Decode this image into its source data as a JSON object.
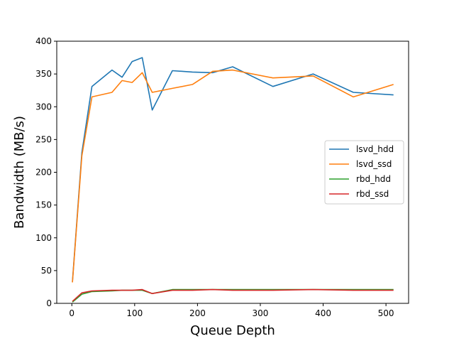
{
  "chart_data": {
    "type": "line",
    "xlabel": "Queue Depth",
    "ylabel": "Bandwidth (MB/s)",
    "xlim": [
      -24,
      536
    ],
    "ylim": [
      0,
      400
    ],
    "xticks": [
      0,
      100,
      200,
      300,
      400,
      500
    ],
    "yticks": [
      0,
      50,
      100,
      150,
      200,
      250,
      300,
      350,
      400
    ],
    "grid": false,
    "legend_position": "center-right",
    "series": [
      {
        "name": "lsvd_hdd",
        "color": "#1f77b4",
        "x": [
          1,
          16,
          32,
          64,
          80,
          96,
          112,
          128,
          160,
          192,
          224,
          256,
          320,
          384,
          448,
          512
        ],
        "y": [
          33,
          230,
          331,
          356,
          345,
          369,
          375,
          295,
          355,
          353,
          352,
          361,
          331,
          350,
          322,
          318
        ]
      },
      {
        "name": "lsvd_ssd",
        "color": "#ff7f0e",
        "x": [
          1,
          16,
          32,
          64,
          80,
          96,
          112,
          128,
          160,
          192,
          224,
          256,
          320,
          384,
          448,
          512
        ],
        "y": [
          32,
          225,
          315,
          322,
          340,
          337,
          352,
          322,
          328,
          334,
          354,
          356,
          344,
          347,
          315,
          334
        ]
      },
      {
        "name": "rbd_hdd",
        "color": "#2ca02c",
        "x": [
          1,
          16,
          32,
          64,
          80,
          96,
          112,
          128,
          160,
          192,
          224,
          256,
          320,
          384,
          448,
          512
        ],
        "y": [
          2,
          14,
          18,
          19,
          20,
          20,
          20,
          15,
          21,
          21,
          21,
          21,
          21,
          21,
          21,
          21
        ]
      },
      {
        "name": "rbd_ssd",
        "color": "#d62728",
        "x": [
          1,
          16,
          32,
          64,
          80,
          96,
          112,
          128,
          160,
          192,
          224,
          256,
          320,
          384,
          448,
          512
        ],
        "y": [
          3,
          16,
          19,
          20,
          20,
          20,
          21,
          15,
          20,
          20,
          21,
          20,
          20,
          21,
          20,
          20
        ]
      }
    ]
  }
}
